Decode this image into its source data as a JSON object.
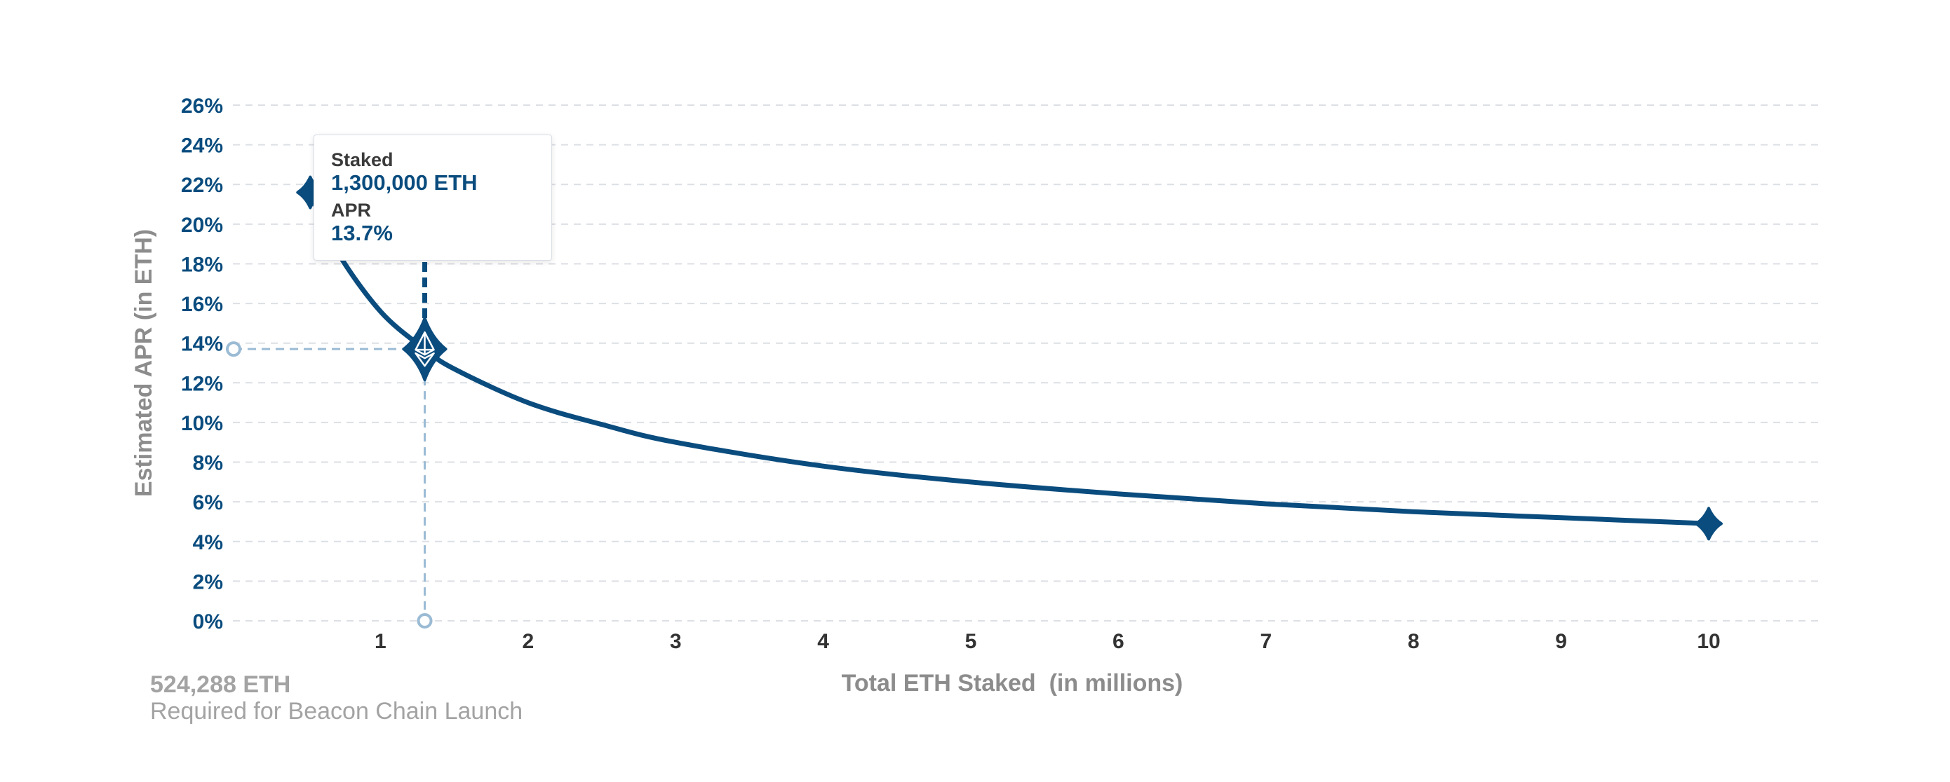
{
  "chart_data": {
    "type": "line",
    "xlabel": "Total ETH Staked  (in millions)",
    "ylabel": "Estimated APR (in ETH)",
    "xlim": [
      0,
      10.8
    ],
    "ylim": [
      0,
      26
    ],
    "x_ticks": [
      "1",
      "2",
      "3",
      "4",
      "5",
      "6",
      "7",
      "8",
      "9",
      "10"
    ],
    "y_ticks": [
      "0%",
      "2%",
      "4%",
      "6%",
      "8%",
      "10%",
      "12%",
      "14%",
      "16%",
      "18%",
      "20%",
      "22%",
      "24%",
      "26%"
    ],
    "grid": true,
    "series": [
      {
        "x": [
          0.524288,
          0.7,
          1.0,
          1.3,
          1.5,
          2,
          2.5,
          3,
          4,
          5,
          6,
          7,
          8,
          9,
          10
        ],
        "y": [
          21.6,
          18.7,
          15.6,
          13.7,
          12.7,
          11.0,
          9.9,
          9.0,
          7.8,
          7.0,
          6.4,
          5.9,
          5.5,
          5.2,
          4.9
        ]
      }
    ],
    "highlight": {
      "x": 1.3,
      "y": 13.7
    },
    "tooltip": {
      "staked_label": "Staked",
      "staked_value": "1,300,000 ETH",
      "apr_label": "APR",
      "apr_value": "13.7%"
    },
    "annotation": {
      "value": "524,288 ETH",
      "text": "Required for Beacon Chain Launch"
    },
    "colors": {
      "line": "#0a4c7e",
      "grid": "#dcdfe4",
      "guide": "#9bbbd4"
    }
  }
}
